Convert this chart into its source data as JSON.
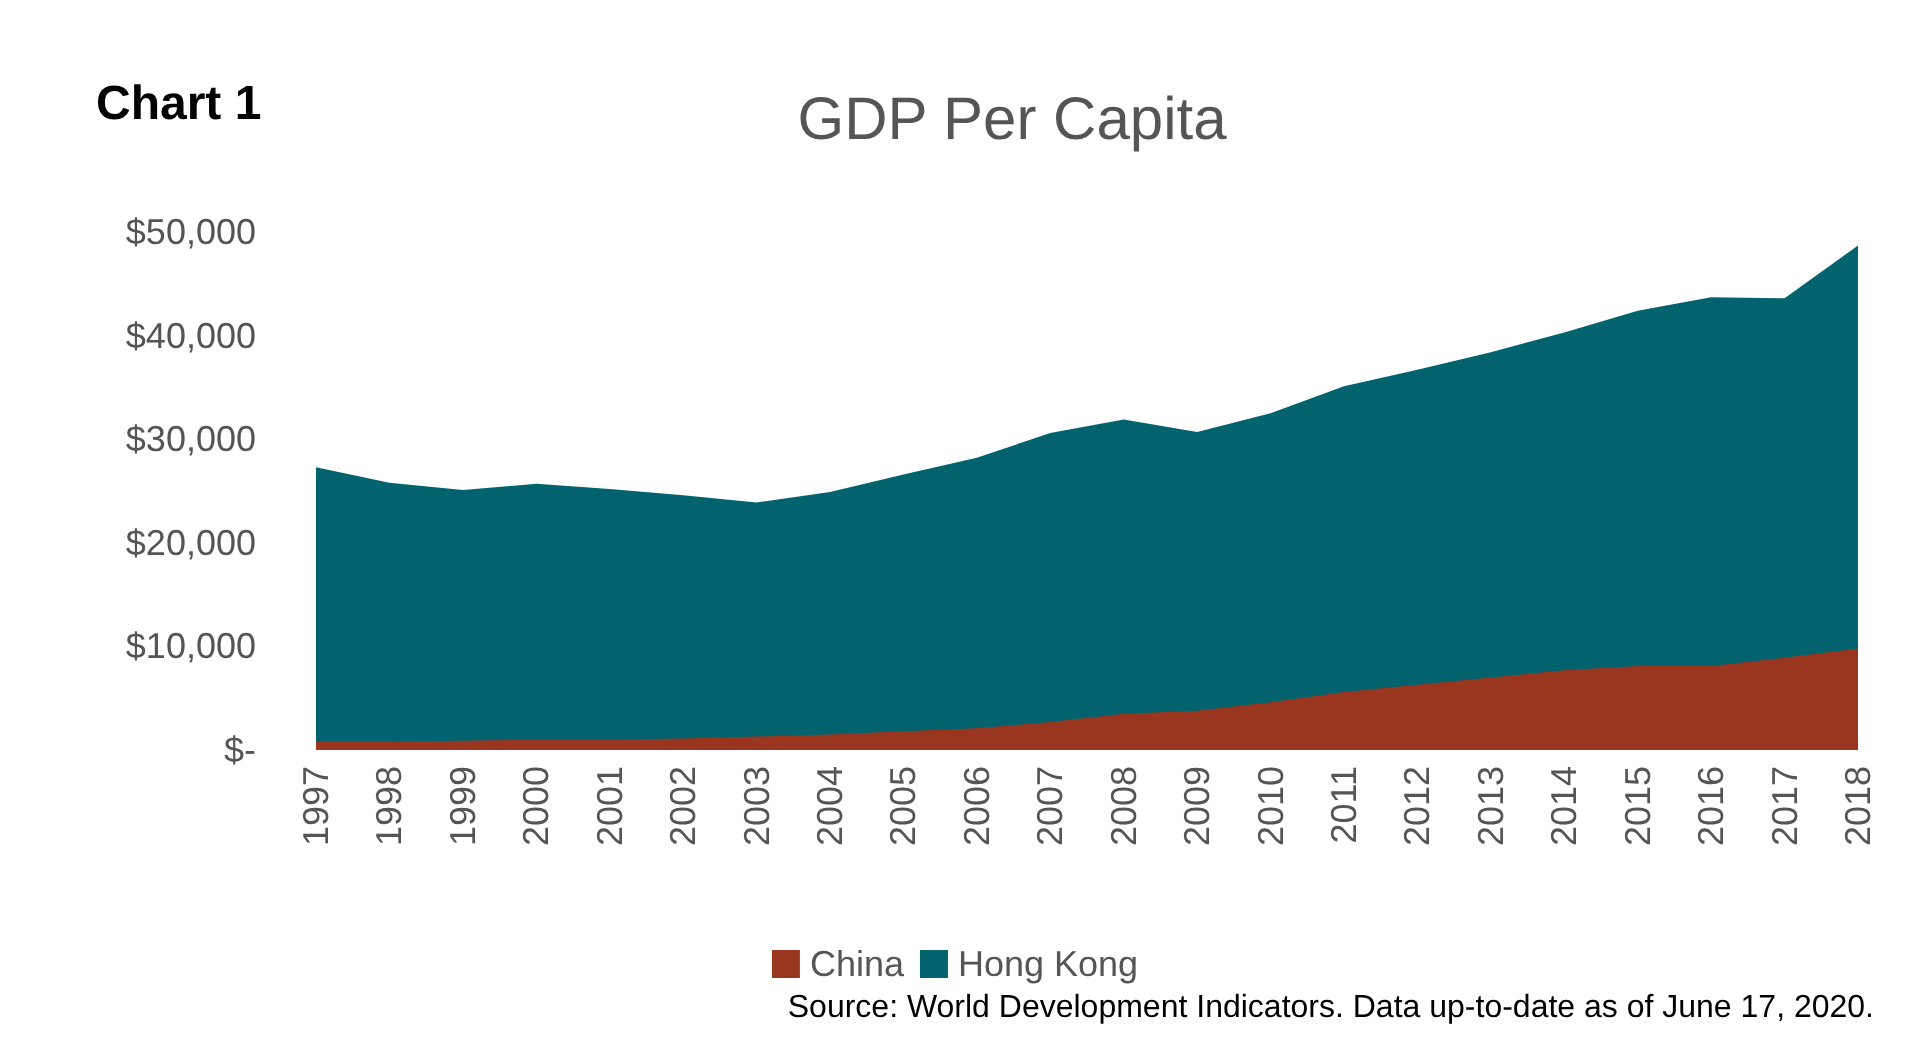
{
  "chart_data": {
    "type": "area",
    "title": "GDP Per Capita",
    "categories": [
      "1997",
      "1998",
      "1999",
      "2000",
      "2001",
      "2002",
      "2003",
      "2004",
      "2005",
      "2006",
      "2007",
      "2008",
      "2009",
      "2010",
      "2011",
      "2012",
      "2013",
      "2014",
      "2015",
      "2016",
      "2017",
      "2018"
    ],
    "series": [
      {
        "name": "Hong Kong",
        "color": "#02636e",
        "values": [
          27300,
          25800,
          25100,
          25700,
          25200,
          24600,
          23900,
          24900,
          26600,
          28200,
          30600,
          31900,
          30700,
          32500,
          35100,
          36700,
          38400,
          40300,
          42400,
          43700,
          43600,
          48700
        ]
      },
      {
        "name": "China",
        "color": "#9a3520",
        "values": [
          800,
          800,
          900,
          1000,
          1000,
          1100,
          1300,
          1500,
          1800,
          2100,
          2700,
          3500,
          3800,
          4600,
          5600,
          6300,
          7000,
          7700,
          8100,
          8100,
          8900,
          9800
        ]
      }
    ],
    "ylim": [
      0,
      50000
    ],
    "yticks": [
      {
        "value": 0,
        "label": "$-"
      },
      {
        "value": 10000,
        "label": "$10,000"
      },
      {
        "value": 20000,
        "label": "$20,000"
      },
      {
        "value": 30000,
        "label": "$30,000"
      },
      {
        "value": 40000,
        "label": "$40,000"
      },
      {
        "value": 50000,
        "label": "$50,000"
      }
    ],
    "grid": false,
    "legend": "bottom",
    "annotations": [
      "Chart 1",
      "Source: World Development Indicators. Data up-to-date as of June 17, 2020."
    ]
  }
}
